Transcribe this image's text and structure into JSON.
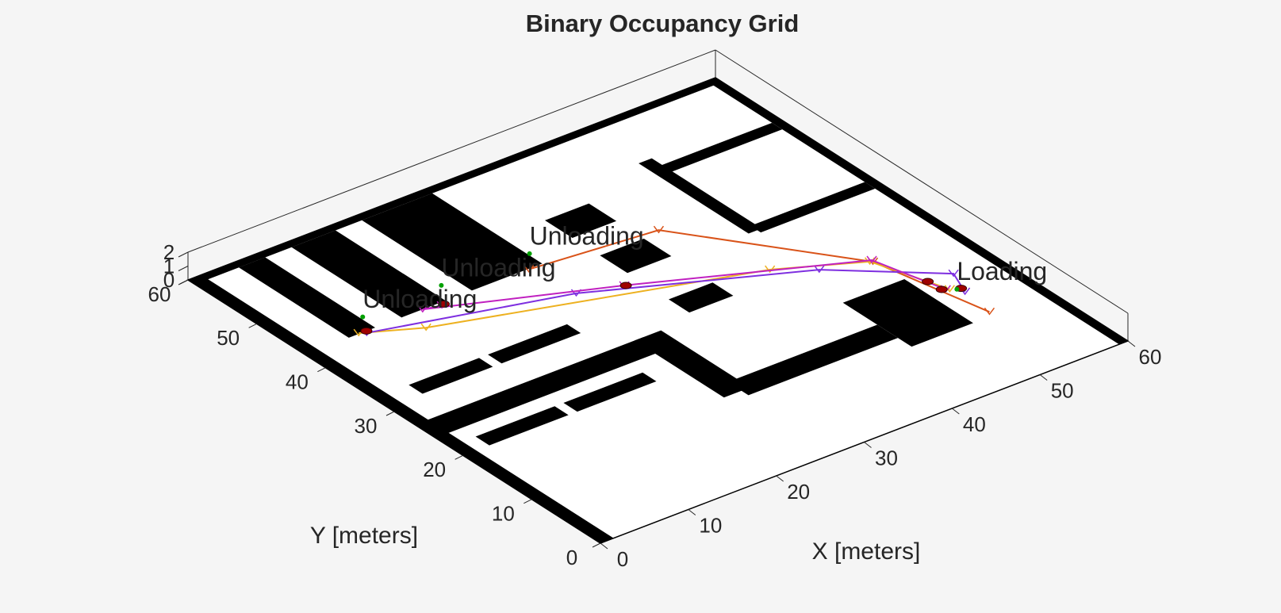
{
  "chart_data": {
    "type": "occupancy-map",
    "title": "Binary Occupancy Grid",
    "xlabel": "X [meters]",
    "ylabel": "Y [meters]",
    "xlim": [
      0,
      60
    ],
    "ylim": [
      0,
      60
    ],
    "zlim": [
      0,
      2
    ],
    "xticks": [
      0,
      10,
      20,
      30,
      40,
      50,
      60
    ],
    "yticks": [
      0,
      10,
      20,
      30,
      40,
      50,
      60
    ],
    "zticks": [
      0,
      1,
      2
    ],
    "obstacle_color": "#000000",
    "free_color": "#ffffff",
    "obstacles": [
      {
        "x": [
          0,
          1.5
        ],
        "y": [
          0,
          60
        ]
      },
      {
        "x": [
          0,
          60
        ],
        "y": [
          59,
          60
        ]
      },
      {
        "x": [
          59,
          60
        ],
        "y": [
          0,
          60
        ]
      },
      {
        "x": [
          5,
          8
        ],
        "y": [
          43,
          59
        ]
      },
      {
        "x": [
          11,
          16
        ],
        "y": [
          43,
          59
        ]
      },
      {
        "x": [
          19,
          27
        ],
        "y": [
          43,
          59
        ]
      },
      {
        "x": [
          45,
          46.5
        ],
        "y": [
          36,
          52
        ]
      },
      {
        "x": [
          46,
          59
        ],
        "y": [
          49,
          50.5
        ]
      },
      {
        "x": [
          46,
          59
        ],
        "y": [
          35.5,
          37
        ]
      },
      {
        "x": [
          32,
          37
        ],
        "y": [
          45,
          49
        ]
      },
      {
        "x": [
          32,
          37
        ],
        "y": [
          37,
          41
        ]
      },
      {
        "x": [
          32,
          37
        ],
        "y": [
          28,
          31
        ]
      },
      {
        "x": [
          44,
          51
        ],
        "y": [
          11,
          21
        ]
      },
      {
        "x": [
          1,
          26
        ],
        "y": [
          24,
          27
        ]
      },
      {
        "x": [
          25,
          28
        ],
        "y": [
          14,
          27
        ]
      },
      {
        "x": [
          27,
          44
        ],
        "y": [
          13,
          16
        ]
      },
      {
        "x": [
          4,
          12
        ],
        "y": [
          31,
          33
        ]
      },
      {
        "x": [
          13,
          22
        ],
        "y": [
          31,
          33
        ]
      },
      {
        "x": [
          3,
          12
        ],
        "y": [
          20,
          22
        ]
      },
      {
        "x": [
          13,
          22
        ],
        "y": [
          20,
          22
        ]
      }
    ],
    "series": [
      {
        "color": "#d95319",
        "x": [
          25.4,
          39.0,
          50.7,
          53.4
        ],
        "y": [
          42.9,
          41.4,
          25.2,
          11.7
        ]
      },
      {
        "color": "#edb120",
        "x": [
          6.2,
          11.6,
          42.5,
          50.5,
          53.1
        ],
        "y": [
          43.1,
          40.2,
          29.7,
          25.4,
          17.1
        ]
      },
      {
        "color": "#7e2fe0",
        "x": [
          6.8,
          26.1,
          46.0,
          55.1,
          53.9
        ],
        "y": [
          42.7,
          36.9,
          27.0,
          19.1,
          15.9
        ]
      },
      {
        "color": "#c020c0",
        "x": [
          15.2,
          13.4,
          30.4,
          50.8,
          52.8
        ],
        "y": [
          42.5,
          43.0,
          35.4,
          25.5,
          17.3
        ]
      }
    ],
    "robots": {
      "color": "#a00000",
      "x": [
        7,
        15.5,
        30.5,
        52.4,
        52.5,
        54
      ],
      "y": [
        43,
        42.6,
        35.3,
        19.4,
        17.5,
        16.6
      ]
    },
    "stations": [
      {
        "label": "Unloading",
        "x": 27.2,
        "y": 45.1
      },
      {
        "label": "Unloading",
        "x": 17.4,
        "y": 45.4
      },
      {
        "label": "Unloading",
        "x": 8.3,
        "y": 45.2
      },
      {
        "label": "Loading",
        "x": 53.6,
        "y": 16.7
      }
    ]
  }
}
